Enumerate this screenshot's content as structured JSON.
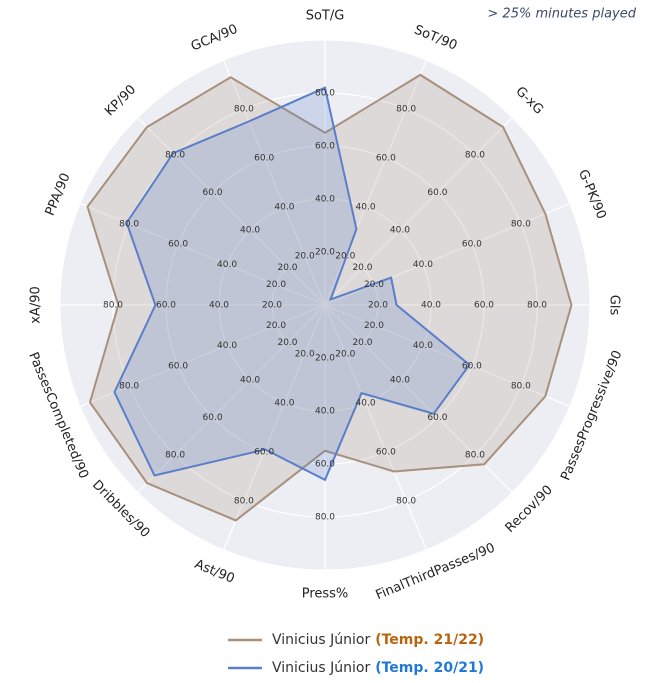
{
  "chart_data": {
    "type": "radar",
    "annotation": "> 25% minutes played",
    "categories": [
      "SoT/G",
      "SoT/90",
      "G-xG",
      "G-PK/90",
      "Gls",
      "PassesProgressive/90",
      "Recov/90",
      "FinalThirdPasses/90",
      "Press%",
      "Ast/90",
      "Dribbles/90",
      "PassesCompleted/90",
      "xA/90",
      "PPA/90",
      "KP/90",
      "GCA/90"
    ],
    "series": [
      {
        "name": "Vinicius Júnior",
        "season": "(Temp. 21/22)",
        "color": "#a8907c",
        "season_color": "#b8640f",
        "values": [
          65,
          94,
          95,
          90,
          93,
          90,
          85,
          68,
          55,
          88,
          95,
          96,
          78,
          97,
          95,
          93
        ]
      },
      {
        "name": "Vinicius Júnior",
        "season": "(Temp. 20/21)",
        "color": "#5a7ec8",
        "season_color": "#1f7ad6",
        "values": [
          82,
          31,
          3,
          27,
          27,
          59,
          58,
          36,
          66,
          59,
          91,
          86,
          64,
          81,
          81,
          75
        ]
      }
    ],
    "rlim": [
      0,
      100
    ],
    "rticks": [
      {
        "value": 20,
        "label": "20.0"
      },
      {
        "value": 40,
        "label": "40.0"
      },
      {
        "value": 60,
        "label": "60.0"
      },
      {
        "value": 80,
        "label": "80.0"
      }
    ],
    "grid": true
  }
}
